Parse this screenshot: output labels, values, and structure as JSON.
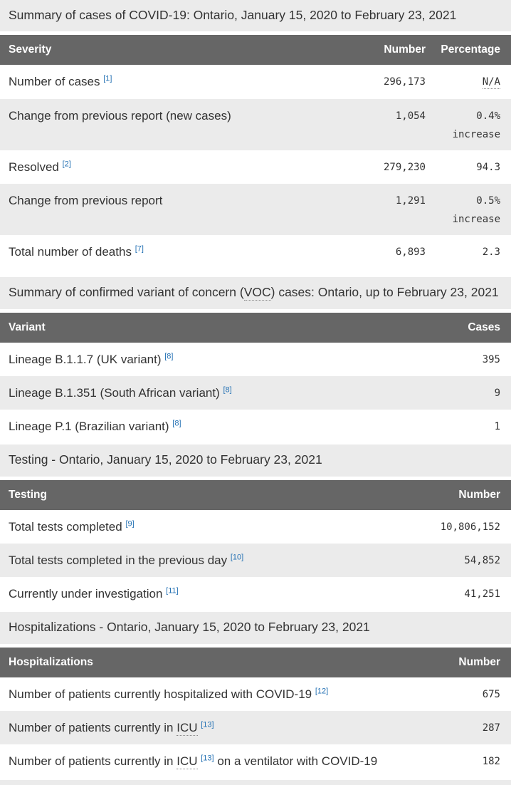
{
  "colors": {
    "header_bg": "#666666",
    "header_text": "#ffffff",
    "stripe_bg": "#ebebeb",
    "caption_bg": "#ebebeb",
    "body_text": "#333333",
    "footnote_link": "#2572b4"
  },
  "tables": [
    {
      "caption_pre": "Summary of cases of COVID-19: Ontario, January 15, 2020 to February 23, 2021",
      "columns": [
        "Severity",
        "Number",
        "Percentage"
      ],
      "rows": [
        {
          "label": "Number of cases",
          "footnote": "[1]",
          "number": "296,173",
          "pct": "N/A"
        },
        {
          "label": "Change from previous report (new cases)",
          "number": "1,054",
          "pct": "0.4%",
          "pct_line2": "increase"
        },
        {
          "label": "Resolved",
          "footnote": "[2]",
          "number": "279,230",
          "pct": "94.3"
        },
        {
          "label": "Change from previous report",
          "number": "1,291",
          "pct": "0.5%",
          "pct_line2": "increase"
        },
        {
          "label": "Total number of deaths",
          "footnote": "[7]",
          "number": "6,893",
          "pct": "2.3"
        }
      ]
    },
    {
      "caption_pre": "Summary of confirmed variant of concern (",
      "caption_abbr": "VOC",
      "caption_post": ") cases: Ontario, up to February 23, 2021",
      "columns": [
        "Variant",
        "Cases"
      ],
      "rows": [
        {
          "label": "Lineage B.1.1.7 (UK variant)",
          "footnote": "[8]",
          "number": "395"
        },
        {
          "label": "Lineage B.1.351 (South African variant)",
          "footnote": "[8]",
          "number": "9"
        },
        {
          "label": "Lineage P.1 (Brazilian variant)",
          "footnote": "[8]",
          "number": "1"
        }
      ]
    },
    {
      "caption_pre": "Testing - Ontario, January 15, 2020 to February 23, 2021",
      "columns": [
        "Testing",
        "Number"
      ],
      "rows": [
        {
          "label": "Total tests completed",
          "footnote": "[9]",
          "number": "10,806,152"
        },
        {
          "label": "Total tests completed in the previous day",
          "footnote": "[10]",
          "number": "54,852"
        },
        {
          "label": "Currently under investigation",
          "footnote": "[11]",
          "number": "41,251"
        }
      ]
    },
    {
      "caption_pre": "Hospitalizations - Ontario, January 15, 2020 to February 23, 2021",
      "columns": [
        "Hospitalizations",
        "Number"
      ],
      "rows": [
        {
          "label": "Number of patients currently hospitalized with COVID-19",
          "footnote": "[12]",
          "number": "675"
        },
        {
          "label_pre": "Number of patients currently in",
          "abbr": "ICU",
          "footnote": "[13]",
          "number": "287"
        },
        {
          "label_pre": "Number of patients currently in",
          "abbr": "ICU",
          "footnote": "[13]",
          "label_post": "on a ventilator with COVID-19",
          "number": "182"
        }
      ]
    }
  ]
}
